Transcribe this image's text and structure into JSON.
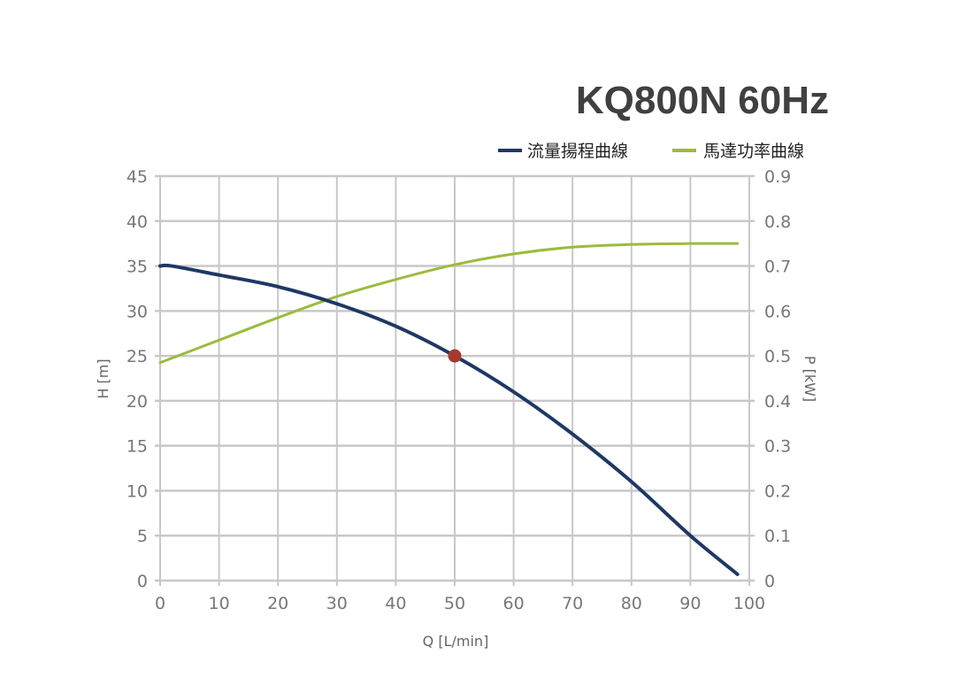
{
  "chart_data": {
    "type": "line",
    "title": "KQ800N  60Hz",
    "xlabel": "Q [L/min]",
    "ylabel": "H [m]",
    "y2label": "P [kW]",
    "xlim": [
      0,
      100
    ],
    "ylim": [
      0,
      45
    ],
    "y2lim": [
      0,
      0.9
    ],
    "xticks": [
      "0",
      "10",
      "20",
      "30",
      "40",
      "50",
      "60",
      "70",
      "80",
      "90",
      "100"
    ],
    "yticks": [
      "0",
      "5",
      "10",
      "15",
      "20",
      "25",
      "30",
      "35",
      "40",
      "45"
    ],
    "y2ticks": [
      "0",
      "0.1",
      "0.2",
      "0.3",
      "0.4",
      "0.5",
      "0.6",
      "0.7",
      "0.8",
      "0.9"
    ],
    "grid": true,
    "legend_position": "top-right",
    "series": [
      {
        "name": "流量揚程曲線",
        "axis": "left",
        "color": "#1f3864",
        "x": [
          0,
          2,
          10,
          20,
          30,
          40,
          50,
          60,
          70,
          80,
          90,
          98
        ],
        "y": [
          35,
          35,
          34,
          32.7,
          30.8,
          28.3,
          25,
          21,
          16.3,
          11,
          5,
          0.7
        ]
      },
      {
        "name": "馬達功率曲線",
        "axis": "right",
        "color": "#9bbb3c",
        "x": [
          0,
          10,
          20,
          30,
          40,
          50,
          60,
          70,
          80,
          90,
          98
        ],
        "y": [
          0.485,
          0.535,
          0.585,
          0.632,
          0.67,
          0.703,
          0.727,
          0.742,
          0.748,
          0.75,
          0.75
        ]
      }
    ],
    "marker": {
      "x": 50,
      "y": 25,
      "color": "#a33a2c"
    }
  }
}
